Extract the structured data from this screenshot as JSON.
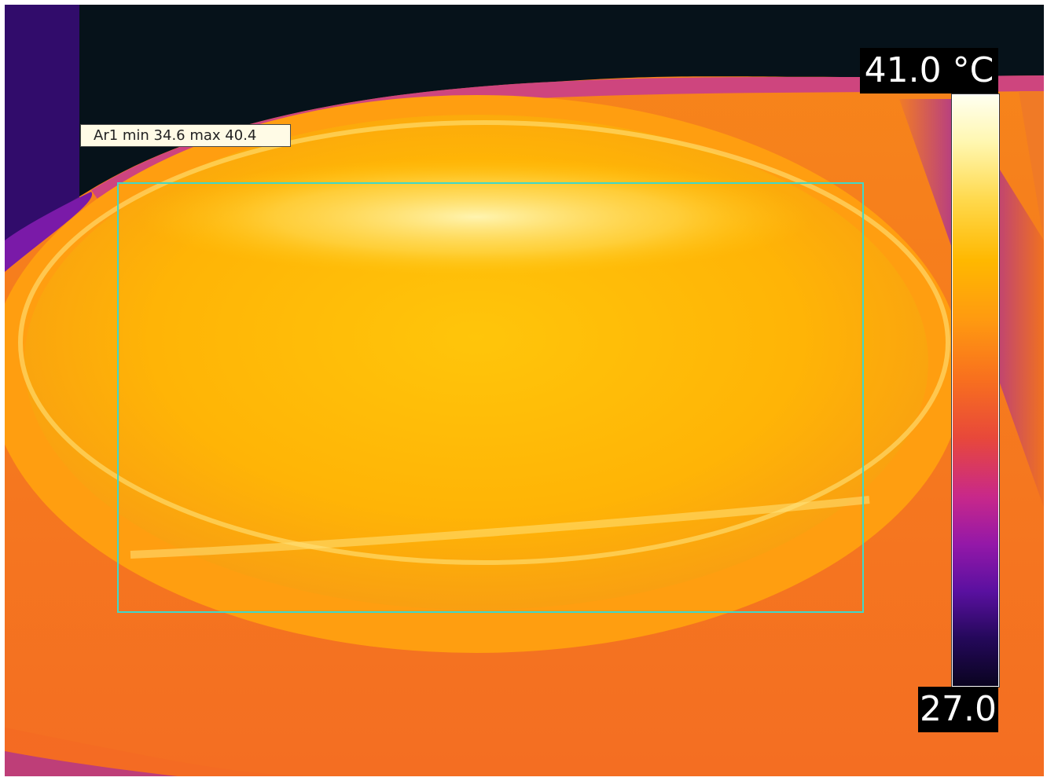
{
  "measurement": {
    "area_label": "Ar1 min 34.6 max 40.4",
    "area_color": "#40d8c8"
  },
  "scale": {
    "max_label": "41.0 °C",
    "min_label": "27.0",
    "max_value": 41.0,
    "min_value": 27.0,
    "unit": "°C",
    "palette": "iron"
  },
  "colors": {
    "background_cold": "#06121a",
    "body_warm": "#f57a1c",
    "body_hot": "#ffc20a",
    "hotspot": "#fff6a8",
    "edge_cool": "#5a10a8"
  }
}
